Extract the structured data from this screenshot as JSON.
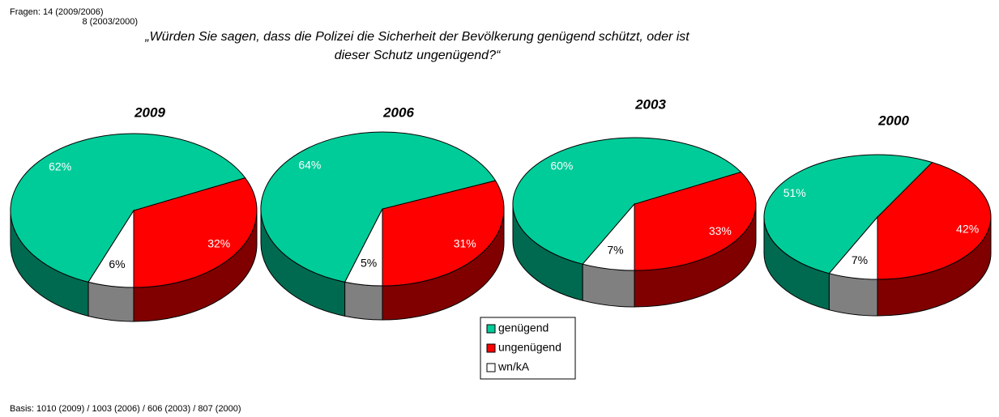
{
  "header": {
    "line1": "Fragen: 14 (2009/2006)",
    "line2": "8 (2003/2000)"
  },
  "title": {
    "line1": "„Würden Sie sagen, dass die Polizei die Sicherheit der Bevölkerung genügend schützt, oder ist",
    "line2": "dieser Schutz ungenügend?“"
  },
  "footnote": "Basis: 1010 (2009) / 1003 (2006) / 606 (2003) / 807 (2000)",
  "chart_data": [
    {
      "type": "pie",
      "title": "2009",
      "categories": [
        "genügend",
        "ungenügend",
        "wn/kA"
      ],
      "colors": [
        "#00cc99",
        "#ff0000",
        "#ffffff"
      ],
      "values": [
        62,
        32,
        6
      ],
      "value_labels": [
        "62%",
        "32%",
        "6%"
      ]
    },
    {
      "type": "pie",
      "title": "2006",
      "categories": [
        "genügend",
        "ungenügend",
        "wn/kA"
      ],
      "colors": [
        "#00cc99",
        "#ff0000",
        "#ffffff"
      ],
      "values": [
        64,
        31,
        5
      ],
      "value_labels": [
        "64%",
        "31%",
        "5%"
      ]
    },
    {
      "type": "pie",
      "title": "2003",
      "categories": [
        "genügend",
        "ungenügend",
        "wn/kA"
      ],
      "colors": [
        "#00cc99",
        "#ff0000",
        "#ffffff"
      ],
      "values": [
        60,
        33,
        7
      ],
      "value_labels": [
        "60%",
        "33%",
        "7%"
      ]
    },
    {
      "type": "pie",
      "title": "2000",
      "categories": [
        "genügend",
        "ungenügend",
        "wn/kA"
      ],
      "colors": [
        "#00cc99",
        "#ff0000",
        "#ffffff"
      ],
      "values": [
        51,
        42,
        7
      ],
      "value_labels": [
        "51%",
        "42%",
        "7%"
      ]
    }
  ]
}
